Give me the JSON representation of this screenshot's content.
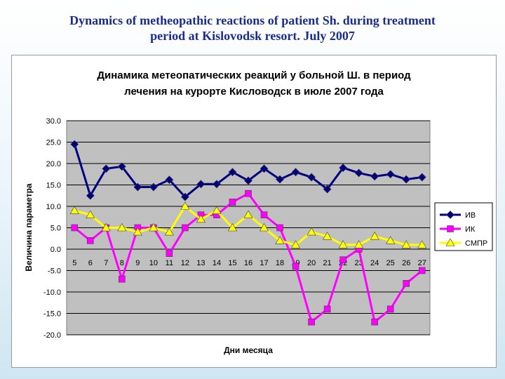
{
  "slide": {
    "title_line1": "Dynamics of metheopathic reactions of patient Sh. during treatment",
    "title_line2": "period at Kislovodsk resort. July 2007"
  },
  "chart_data": {
    "type": "line",
    "title_line1": "Динамика метеопатических реакций у больной Ш. в период",
    "title_line2": "лечения на курорте Кисловодск в июле 2007 года",
    "xlabel": "Дни месяца",
    "ylabel": "Величина параметра",
    "ylim": [
      -20,
      30
    ],
    "y_ticks": [
      "30.0",
      "25.0",
      "20.0",
      "15.0",
      "10.0",
      "5.0",
      "0.0",
      "-5.0",
      "-10.0",
      "-15.0",
      "-20.0"
    ],
    "y_tick_values": [
      30,
      25,
      20,
      15,
      10,
      5,
      0,
      -5,
      -10,
      -15,
      -20
    ],
    "categories": [
      "5",
      "6",
      "7",
      "8",
      "9",
      "10",
      "11",
      "12",
      "13",
      "14",
      "15",
      "16",
      "17",
      "18",
      "19",
      "20",
      "21",
      "22",
      "23",
      "24",
      "25",
      "26",
      "27"
    ],
    "grid": true,
    "legend_position": "right",
    "series": [
      {
        "name": "ИВ",
        "color": "#000080",
        "marker": "diamond",
        "values": [
          24.5,
          12.5,
          18.8,
          19.3,
          14.5,
          14.5,
          16.2,
          12.2,
          15.2,
          15.2,
          18.0,
          16.0,
          18.8,
          16.3,
          18.0,
          16.8,
          14.0,
          19.0,
          17.8,
          17.0,
          17.5,
          16.3,
          16.8
        ]
      },
      {
        "name": "ИК",
        "color": "#ff00ff",
        "marker": "square",
        "values": [
          5.0,
          2.0,
          5.0,
          -7.0,
          5.0,
          5.0,
          -1.0,
          5.0,
          8.0,
          8.0,
          11.0,
          13.0,
          8.0,
          5.0,
          -4.0,
          -17.0,
          -14.0,
          -2.5,
          0.0,
          -17.0,
          -14.0,
          -8.0,
          -5.0
        ]
      },
      {
        "name": "СМПР",
        "color": "#ffff00",
        "marker": "triangle",
        "values": [
          9.0,
          8.0,
          5.0,
          5.0,
          4.0,
          5.0,
          4.0,
          10.0,
          7.0,
          9.0,
          5.0,
          8.0,
          5.0,
          2.0,
          1.0,
          4.0,
          3.0,
          1.0,
          1.0,
          3.0,
          2.0,
          1.0,
          1.0
        ]
      }
    ]
  }
}
